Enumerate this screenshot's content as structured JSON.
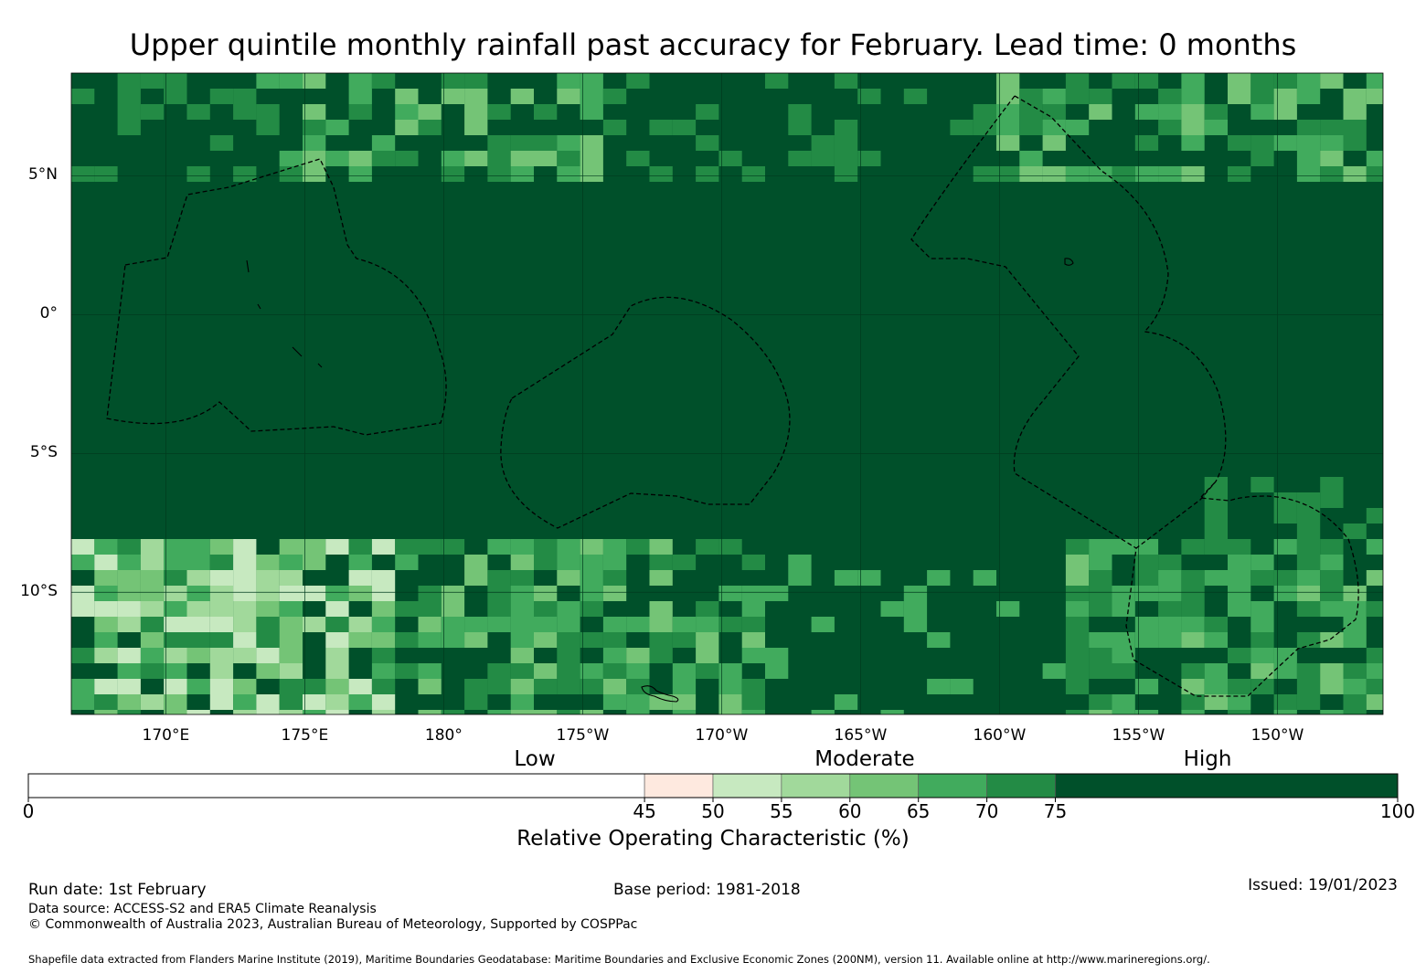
{
  "title": "Upper quintile monthly rainfall past accuracy for February. Lead time: 0 months",
  "map": {
    "lat_labels": [
      "5°N",
      "0°",
      "5°S",
      "10°S"
    ],
    "lon_labels": [
      "170°E",
      "175°E",
      "180°",
      "175°W",
      "170°W",
      "165°W",
      "160°W",
      "155°W",
      "150°W"
    ],
    "lat_values": [
      5,
      0,
      -5,
      -10
    ],
    "lon_values": [
      170,
      175,
      180,
      185,
      190,
      195,
      200,
      205,
      210
    ],
    "extent": {
      "lon_min": 166.6,
      "lon_max": 213.8,
      "lat_max": 8.7,
      "lat_min": -14.4
    },
    "cell_size_deg": 0.833,
    "background_color": "#00502a",
    "boundary_color": "#000000"
  },
  "legend": {
    "category_labels": [
      "Low",
      "Moderate",
      "High"
    ],
    "breaks": [
      0,
      45,
      50,
      55,
      60,
      65,
      70,
      75,
      100
    ],
    "tick_labels": [
      "0",
      "45",
      "50",
      "55",
      "60",
      "65",
      "70",
      "75",
      "100"
    ],
    "colors": [
      "#ffffff",
      "#fee9df",
      "#c7e9c0",
      "#a1d99b",
      "#74c476",
      "#41ab5d",
      "#238b45",
      "#00502a"
    ],
    "title": "Relative Operating Characteristic (%)"
  },
  "footer": {
    "run_date": "Run date: 1st February",
    "base_period": "Base period: 1981-2018",
    "issued": "Issued: 19/01/2023",
    "data_source": "Data source: ACCESS-S2 and ERA5 Climate Reanalysis",
    "copyright": "© Commonwealth of Australia 2023, Australian Bureau of Meteorology, Supported by COSPPac",
    "shapefile": "Shapefile data extracted from Flanders Marine Institute (2019), Maritime Boundaries Geodatabase: Maritime Boundaries and Exclusive Economic Zones (200NM), version 11. Available online at http://www.marineregions.org/."
  }
}
